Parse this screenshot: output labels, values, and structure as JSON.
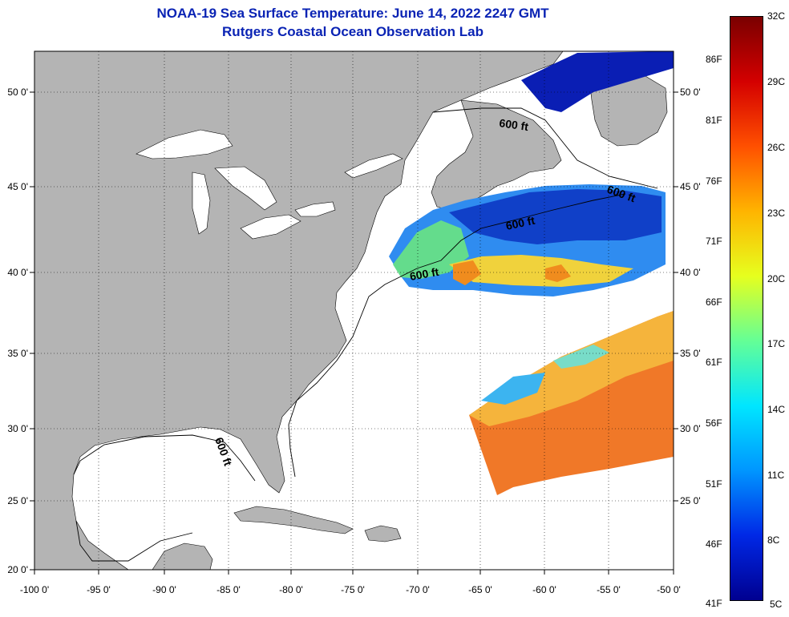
{
  "title": "NOAA-19 Sea Surface Temperature:  June 14, 2022 2247 GMT",
  "subtitle": "Rutgers Coastal Ocean Observation Lab",
  "map": {
    "lon_ticks": [
      "-100 0'",
      "-95 0'",
      "-90 0'",
      "-85 0'",
      "-80 0'",
      "-75 0'",
      "-70 0'",
      "-65 0'",
      "-60 0'",
      "-55 0'",
      "-50 0'"
    ],
    "lat_ticks": [
      "20 0'",
      "25 0'",
      "30 0'",
      "35 0'",
      "40 0'",
      "45 0'",
      "50 0'"
    ],
    "contour_labels": [
      "600 ft",
      "600 ft",
      "600 ft",
      "600 ft",
      "600 ft"
    ],
    "land_color": "#b4b4b4",
    "nodata_color": "#ffffff"
  },
  "colorbar": {
    "fahrenheit": [
      "86F",
      "81F",
      "76F",
      "71F",
      "66F",
      "61F",
      "56F",
      "51F",
      "46F",
      "41F"
    ],
    "celsius": [
      "32C",
      "29C",
      "26C",
      "23C",
      "20C",
      "17C",
      "14C",
      "11C",
      "8C",
      "5C"
    ],
    "colors": [
      "#7a0000",
      "#d40000",
      "#ff5000",
      "#ffb400",
      "#e6ff1e",
      "#64ff96",
      "#00e6ff",
      "#0096ff",
      "#0028e6",
      "#000090"
    ]
  }
}
